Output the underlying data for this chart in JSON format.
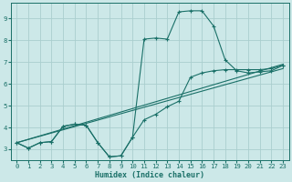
{
  "bg_color": "#cce8e8",
  "grid_color": "#aacece",
  "line_color": "#1a7068",
  "xlabel": "Humidex (Indice chaleur)",
  "xlim": [
    -0.5,
    23.5
  ],
  "ylim": [
    2.5,
    9.7
  ],
  "xticks": [
    0,
    1,
    2,
    3,
    4,
    5,
    6,
    7,
    8,
    9,
    10,
    11,
    12,
    13,
    14,
    15,
    16,
    17,
    18,
    19,
    20,
    21,
    22,
    23
  ],
  "yticks": [
    3,
    4,
    5,
    6,
    7,
    8,
    9
  ],
  "curve_loop_x": [
    0,
    1,
    2,
    3,
    4,
    5,
    6,
    7,
    8,
    9,
    10,
    11,
    12,
    13,
    14,
    15,
    16,
    17,
    18,
    19,
    20,
    21,
    22,
    23
  ],
  "curve_loop_y": [
    3.3,
    3.05,
    3.3,
    3.35,
    4.05,
    4.15,
    4.1,
    3.3,
    2.65,
    2.7,
    3.55,
    8.05,
    8.1,
    8.05,
    9.3,
    9.35,
    9.35,
    8.65,
    7.1,
    6.6,
    6.5,
    6.55,
    6.6,
    6.85
  ],
  "curve_flat_x": [
    0,
    1,
    2,
    3,
    4,
    5,
    6,
    7,
    8,
    9,
    10,
    11,
    12,
    13,
    14,
    15,
    16,
    17,
    18,
    19,
    20,
    21,
    22,
    23
  ],
  "curve_flat_y": [
    3.3,
    3.05,
    3.3,
    3.35,
    4.05,
    4.15,
    4.1,
    3.3,
    2.65,
    2.7,
    3.55,
    4.35,
    4.6,
    4.95,
    5.2,
    6.3,
    6.5,
    6.6,
    6.65,
    6.65,
    6.65,
    6.65,
    6.7,
    6.85
  ],
  "line1_x": [
    0,
    23
  ],
  "line1_y": [
    3.3,
    6.9
  ],
  "line2_x": [
    0,
    23
  ],
  "line2_y": [
    3.3,
    6.7
  ]
}
